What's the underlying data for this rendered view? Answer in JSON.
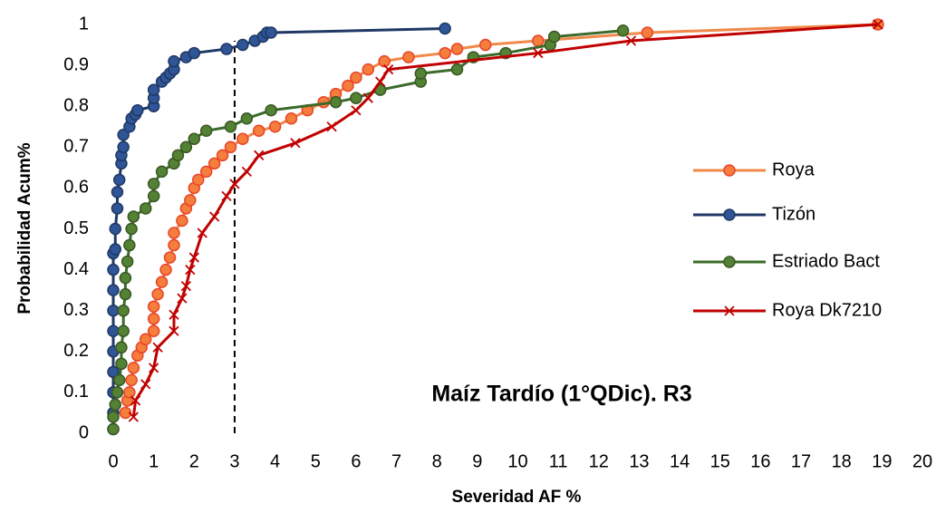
{
  "chart_data": {
    "type": "line",
    "annotation": "Maíz Tardío (1°QDic). R3",
    "x_label": "Severidad AF %",
    "y_label": "Probabilidad Acum%",
    "xlim": [
      0,
      20
    ],
    "xticks": [
      0,
      1,
      2,
      3,
      4,
      5,
      6,
      7,
      8,
      9,
      10,
      11,
      12,
      13,
      14,
      15,
      16,
      17,
      18,
      19,
      20
    ],
    "ylim": [
      0,
      1
    ],
    "yticks": [
      0,
      0.1,
      0.2,
      0.3,
      0.4,
      0.5,
      0.6,
      0.7,
      0.8,
      0.9,
      1
    ],
    "grid": false,
    "reference_line": {
      "x": 3,
      "y": [
        0,
        0.96
      ]
    },
    "legend": "right",
    "series": [
      {
        "name": "Roya",
        "color": "#F0894A",
        "marker": "circle",
        "marker_fill": "#F57E3C",
        "marker_stroke": "#E8442A",
        "x": [
          0.3,
          0.35,
          0.4,
          0.45,
          0.5,
          0.6,
          0.7,
          0.8,
          1,
          1,
          1,
          1.1,
          1.2,
          1.3,
          1.4,
          1.5,
          1.5,
          1.7,
          1.8,
          1.9,
          2,
          2.1,
          2.3,
          2.5,
          2.7,
          2.9,
          3.2,
          3.6,
          4,
          4.4,
          4.8,
          5.2,
          5.5,
          5.8,
          6,
          6.3,
          6.7,
          7.3,
          8.2,
          8.5,
          9.2,
          10.5,
          13.2,
          18.9
        ],
        "values": [
          0.05,
          0.08,
          0.1,
          0.13,
          0.16,
          0.19,
          0.21,
          0.23,
          0.25,
          0.28,
          0.31,
          0.34,
          0.37,
          0.4,
          0.43,
          0.46,
          0.49,
          0.52,
          0.55,
          0.57,
          0.6,
          0.62,
          0.64,
          0.66,
          0.68,
          0.7,
          0.72,
          0.74,
          0.75,
          0.77,
          0.79,
          0.81,
          0.83,
          0.85,
          0.87,
          0.89,
          0.91,
          0.92,
          0.93,
          0.94,
          0.95,
          0.96,
          0.98,
          1
        ]
      },
      {
        "name": "Tizón",
        "color": "#1F3864",
        "marker": "circle",
        "marker_fill": "#2F5597",
        "marker_stroke": "#1F3864",
        "x": [
          0,
          0,
          0,
          0,
          0,
          0,
          0,
          0,
          0,
          0,
          0.05,
          0.05,
          0.1,
          0.1,
          0.15,
          0.2,
          0.2,
          0.25,
          0.25,
          0.4,
          0.45,
          0.55,
          0.6,
          1,
          1,
          1,
          1.2,
          1.3,
          1.4,
          1.5,
          1.5,
          1.8,
          2,
          2.8,
          3.2,
          3.5,
          3.7,
          3.8,
          3.9,
          8.2
        ],
        "values": [
          0.01,
          0.05,
          0.1,
          0.15,
          0.2,
          0.25,
          0.3,
          0.35,
          0.4,
          0.44,
          0.45,
          0.5,
          0.55,
          0.59,
          0.62,
          0.66,
          0.68,
          0.7,
          0.73,
          0.75,
          0.77,
          0.78,
          0.79,
          0.8,
          0.82,
          0.84,
          0.86,
          0.87,
          0.88,
          0.89,
          0.91,
          0.92,
          0.93,
          0.94,
          0.95,
          0.96,
          0.97,
          0.98,
          0.98,
          0.99
        ]
      },
      {
        "name": "Estriado Bact",
        "color": "#3B6B2A",
        "marker": "circle",
        "marker_fill": "#548235",
        "marker_stroke": "#385723",
        "x": [
          0,
          0,
          0.05,
          0.1,
          0.15,
          0.2,
          0.2,
          0.25,
          0.25,
          0.3,
          0.3,
          0.35,
          0.4,
          0.45,
          0.5,
          0.8,
          1,
          1,
          1.2,
          1.5,
          1.6,
          1.8,
          2,
          2.3,
          2.9,
          3.3,
          3.9,
          5.5,
          6,
          6.6,
          7.6,
          7.6,
          8.5,
          8.9,
          9.7,
          10.8,
          10.9,
          12.6
        ],
        "values": [
          0.01,
          0.04,
          0.07,
          0.1,
          0.13,
          0.17,
          0.21,
          0.25,
          0.3,
          0.34,
          0.38,
          0.42,
          0.46,
          0.5,
          0.53,
          0.55,
          0.58,
          0.61,
          0.64,
          0.66,
          0.68,
          0.7,
          0.72,
          0.74,
          0.75,
          0.77,
          0.79,
          0.81,
          0.82,
          0.84,
          0.86,
          0.88,
          0.89,
          0.92,
          0.93,
          0.95,
          0.97,
          0.985
        ]
      },
      {
        "name": "Roya Dk7210",
        "color": "#C00000",
        "marker": "x",
        "marker_fill": "#C00000",
        "marker_stroke": "#C00000",
        "x": [
          0.5,
          0.55,
          0.8,
          1,
          1.1,
          1.5,
          1.5,
          1.7,
          1.8,
          1.9,
          2,
          2.2,
          2.5,
          2.8,
          3,
          3.3,
          3.6,
          4.5,
          5.4,
          6,
          6.3,
          6.6,
          6.8,
          10.5,
          12.8,
          18.9
        ],
        "values": [
          0.04,
          0.08,
          0.12,
          0.16,
          0.21,
          0.25,
          0.29,
          0.33,
          0.36,
          0.4,
          0.43,
          0.49,
          0.53,
          0.58,
          0.61,
          0.64,
          0.68,
          0.71,
          0.75,
          0.79,
          0.82,
          0.86,
          0.89,
          0.93,
          0.96,
          1
        ]
      }
    ]
  }
}
